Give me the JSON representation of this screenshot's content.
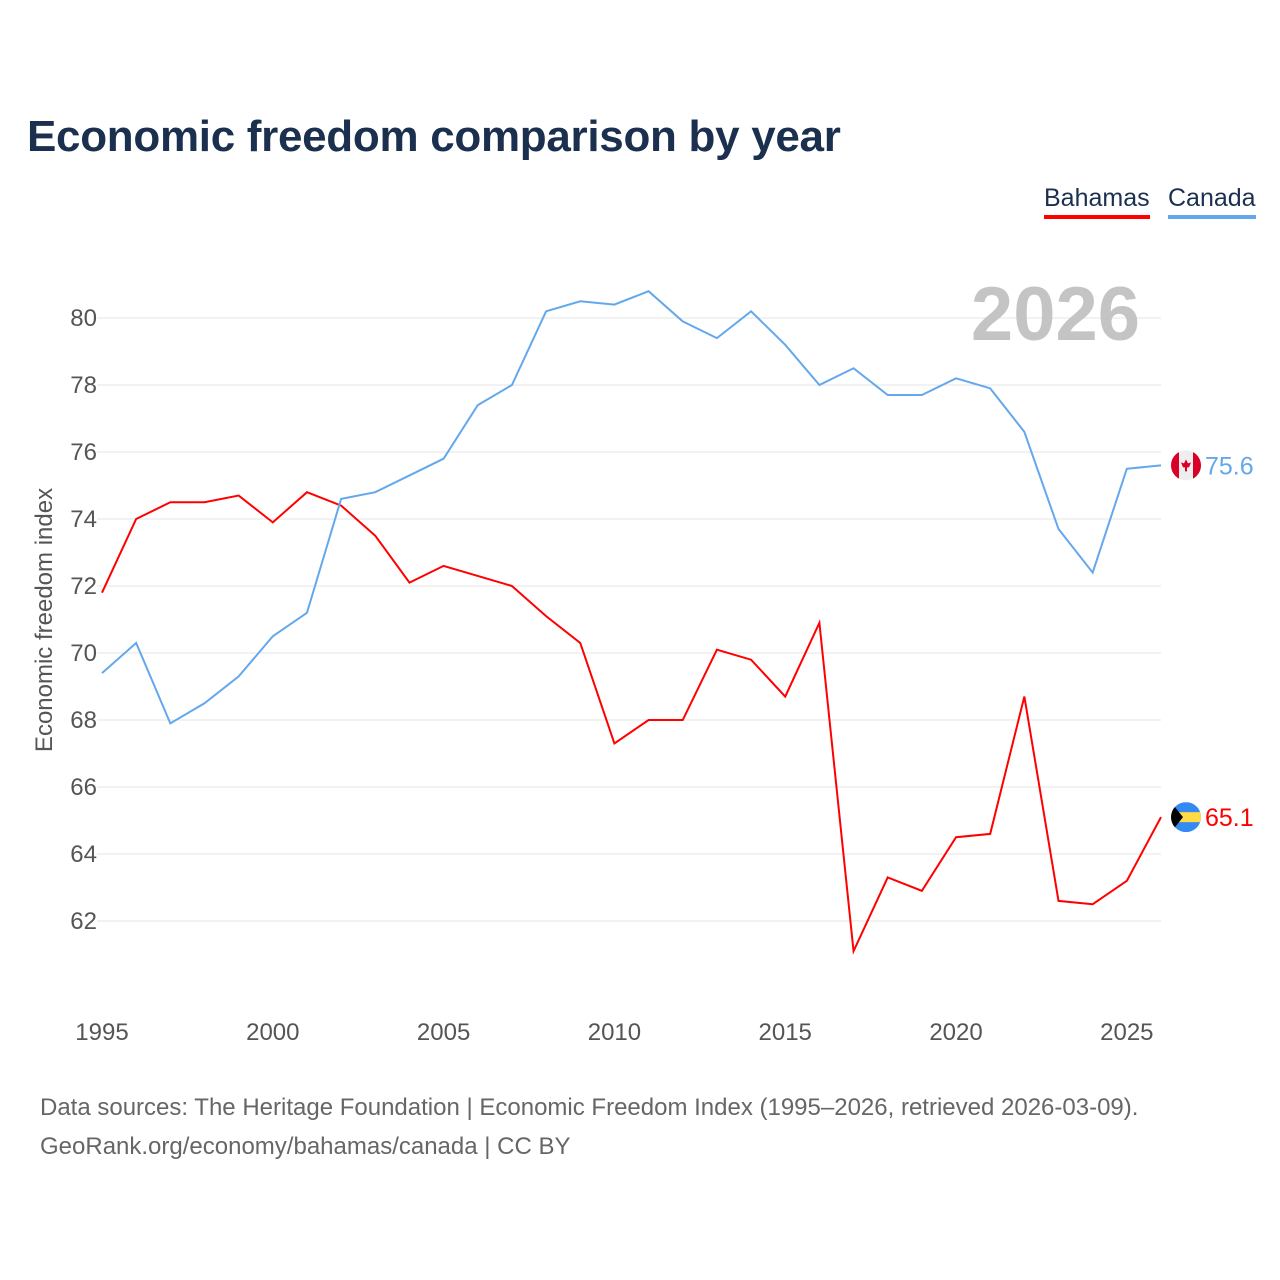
{
  "title": "Economic freedom comparison by year",
  "footer": {
    "line1": "Data sources: The Heritage Foundation | Economic Freedom Index (1995–2026, retrieved 2026-03-09).",
    "line2": "GeoRank.org/economy/bahamas/canada | CC BY"
  },
  "chart_data": {
    "type": "line",
    "title": "Economic freedom comparison by year",
    "xlabel": "",
    "ylabel": "Economic freedom index",
    "year_watermark": "2026",
    "x": [
      1995,
      1996,
      1997,
      1998,
      1999,
      2000,
      2001,
      2002,
      2003,
      2004,
      2005,
      2006,
      2007,
      2008,
      2009,
      2010,
      2011,
      2012,
      2013,
      2014,
      2015,
      2016,
      2017,
      2018,
      2019,
      2020,
      2021,
      2022,
      2023,
      2024,
      2025,
      2026
    ],
    "xlim": [
      1995,
      2026
    ],
    "ylim": [
      60,
      81.5
    ],
    "x_ticks": [
      "1995",
      "2000",
      "2005",
      "2010",
      "2015",
      "2020",
      "2025"
    ],
    "y_ticks": [
      "62",
      "64",
      "66",
      "68",
      "70",
      "72",
      "74",
      "76",
      "78",
      "80"
    ],
    "grid": true,
    "legend_position": "top-right",
    "series": [
      {
        "name": "Bahamas",
        "color": "#ff0000",
        "flag": "bahamas-flag",
        "end_label": "65.1",
        "values": [
          71.8,
          74.0,
          74.5,
          74.5,
          74.7,
          73.9,
          74.8,
          74.4,
          73.5,
          72.1,
          72.6,
          72.3,
          72.0,
          71.1,
          70.3,
          67.3,
          68.0,
          68.0,
          70.1,
          69.8,
          68.7,
          70.9,
          61.1,
          63.3,
          62.9,
          64.5,
          64.6,
          68.7,
          62.6,
          62.5,
          63.2,
          65.1
        ]
      },
      {
        "name": "Canada",
        "color": "#63a8ec",
        "flag": "canada-flag",
        "end_label": "75.6",
        "values": [
          69.4,
          70.3,
          67.9,
          68.5,
          69.3,
          70.5,
          71.2,
          74.6,
          74.8,
          75.3,
          75.8,
          77.4,
          78.0,
          80.2,
          80.5,
          80.4,
          80.8,
          79.9,
          79.4,
          80.2,
          79.2,
          78.0,
          78.5,
          77.7,
          77.7,
          78.2,
          77.9,
          76.6,
          73.7,
          72.4,
          75.5,
          75.6
        ]
      }
    ]
  }
}
